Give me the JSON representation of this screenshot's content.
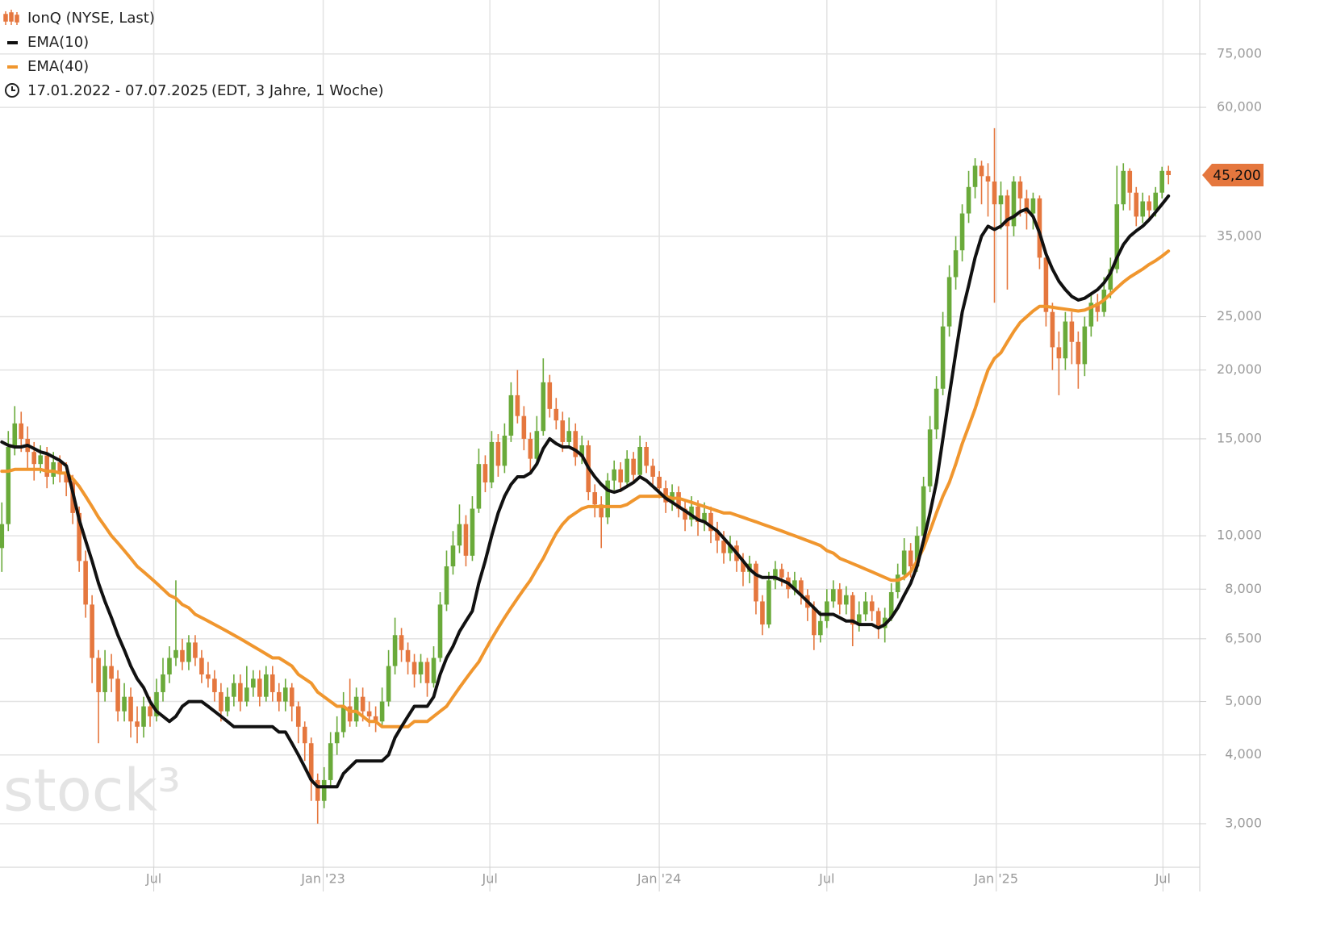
{
  "chart_data": {
    "type": "candlestick",
    "title": "IonQ (NYSE, Last)",
    "subtitle": "17.01.2022 - 07.07.2025",
    "subtitle_note": "(EDT, 3 Jahre, 1 Woche)",
    "watermark": "stock³",
    "log_scale": true,
    "grid": true,
    "up_color": "#6aaa3a",
    "down_color": "#e5773e",
    "title_color": "#e5773e",
    "xlim": [
      "2022-01-15",
      "2025-08-10"
    ],
    "xticks": [
      {
        "value": "2022-07-01",
        "label": "Jul"
      },
      {
        "value": "2023-01-01",
        "label": "Jan '23"
      },
      {
        "value": "2023-07-01",
        "label": "Jul"
      },
      {
        "value": "2024-01-01",
        "label": "Jan '24"
      },
      {
        "value": "2024-07-01",
        "label": "Jul"
      },
      {
        "value": "2025-01-01",
        "label": "Jan '25"
      },
      {
        "value": "2025-07-01",
        "label": "Jul"
      }
    ],
    "ylim": [
      2.5,
      94
    ],
    "yticks": [
      {
        "value": 3,
        "label": "3,000"
      },
      {
        "value": 4,
        "label": "4,000"
      },
      {
        "value": 5,
        "label": "5,000"
      },
      {
        "value": 6.5,
        "label": "6,500"
      },
      {
        "value": 8,
        "label": "8,000"
      },
      {
        "value": 10,
        "label": "10,000"
      },
      {
        "value": 15,
        "label": "15,000"
      },
      {
        "value": 20,
        "label": "20,000"
      },
      {
        "value": 25,
        "label": "25,000"
      },
      {
        "value": 35,
        "label": "35,000"
      },
      {
        "value": 60,
        "label": "60,000"
      },
      {
        "value": 75,
        "label": "75,000"
      }
    ],
    "last_price": {
      "value": 45.2,
      "label": "45,200"
    },
    "x": [
      "2022-01-17",
      "2022-01-24",
      "2022-01-31",
      "2022-02-07",
      "2022-02-14",
      "2022-02-21",
      "2022-02-28",
      "2022-03-07",
      "2022-03-14",
      "2022-03-21",
      "2022-03-28",
      "2022-04-04",
      "2022-04-11",
      "2022-04-18",
      "2022-04-25",
      "2022-05-02",
      "2022-05-09",
      "2022-05-16",
      "2022-05-23",
      "2022-05-30",
      "2022-06-06",
      "2022-06-13",
      "2022-06-20",
      "2022-06-27",
      "2022-07-04",
      "2022-07-11",
      "2022-07-18",
      "2022-07-25",
      "2022-08-01",
      "2022-08-08",
      "2022-08-15",
      "2022-08-22",
      "2022-08-29",
      "2022-09-05",
      "2022-09-12",
      "2022-09-19",
      "2022-09-26",
      "2022-10-03",
      "2022-10-10",
      "2022-10-17",
      "2022-10-24",
      "2022-10-31",
      "2022-11-07",
      "2022-11-14",
      "2022-11-21",
      "2022-11-28",
      "2022-12-05",
      "2022-12-12",
      "2022-12-19",
      "2022-12-26",
      "2023-01-02",
      "2023-01-09",
      "2023-01-16",
      "2023-01-23",
      "2023-01-30",
      "2023-02-06",
      "2023-02-13",
      "2023-02-20",
      "2023-02-27",
      "2023-03-06",
      "2023-03-13",
      "2023-03-20",
      "2023-03-27",
      "2023-04-03",
      "2023-04-10",
      "2023-04-17",
      "2023-04-24",
      "2023-05-01",
      "2023-05-08",
      "2023-05-15",
      "2023-05-22",
      "2023-05-29",
      "2023-06-05",
      "2023-06-12",
      "2023-06-19",
      "2023-06-26",
      "2023-07-03",
      "2023-07-10",
      "2023-07-17",
      "2023-07-24",
      "2023-07-31",
      "2023-08-07",
      "2023-08-14",
      "2023-08-21",
      "2023-08-28",
      "2023-09-04",
      "2023-09-11",
      "2023-09-18",
      "2023-09-25",
      "2023-10-02",
      "2023-10-09",
      "2023-10-16",
      "2023-10-23",
      "2023-10-30",
      "2023-11-06",
      "2023-11-13",
      "2023-11-20",
      "2023-11-27",
      "2023-12-04",
      "2023-12-11",
      "2023-12-18",
      "2023-12-25",
      "2024-01-01",
      "2024-01-08",
      "2024-01-15",
      "2024-01-22",
      "2024-01-29",
      "2024-02-05",
      "2024-02-12",
      "2024-02-19",
      "2024-02-26",
      "2024-03-04",
      "2024-03-11",
      "2024-03-18",
      "2024-03-25",
      "2024-04-01",
      "2024-04-08",
      "2024-04-15",
      "2024-04-22",
      "2024-04-29",
      "2024-05-06",
      "2024-05-13",
      "2024-05-20",
      "2024-05-27",
      "2024-06-03",
      "2024-06-10",
      "2024-06-17",
      "2024-06-24",
      "2024-07-01",
      "2024-07-08",
      "2024-07-15",
      "2024-07-22",
      "2024-07-29",
      "2024-08-05",
      "2024-08-12",
      "2024-08-19",
      "2024-08-26",
      "2024-09-02",
      "2024-09-09",
      "2024-09-16",
      "2024-09-23",
      "2024-09-30",
      "2024-10-07",
      "2024-10-14",
      "2024-10-21",
      "2024-10-28",
      "2024-11-04",
      "2024-11-11",
      "2024-11-18",
      "2024-11-25",
      "2024-12-02",
      "2024-12-09",
      "2024-12-16",
      "2024-12-23",
      "2024-12-30",
      "2025-01-06",
      "2025-01-13",
      "2025-01-20",
      "2025-01-27",
      "2025-02-03",
      "2025-02-10",
      "2025-02-17",
      "2025-02-24",
      "2025-03-03",
      "2025-03-10",
      "2025-03-17",
      "2025-03-24",
      "2025-03-31",
      "2025-04-07",
      "2025-04-14",
      "2025-04-21",
      "2025-04-28",
      "2025-05-05",
      "2025-05-12",
      "2025-05-19",
      "2025-05-26",
      "2025-06-02",
      "2025-06-09",
      "2025-06-16",
      "2025-06-23",
      "2025-06-30",
      "2025-07-07"
    ],
    "open": [
      9.5,
      10.5,
      14.5,
      16.0,
      15.0,
      14.2,
      13.5,
      14.0,
      12.8,
      13.6,
      13.0,
      12.5,
      11.0,
      9.0,
      7.5,
      6.0,
      5.2,
      5.8,
      5.5,
      4.8,
      5.1,
      4.6,
      4.5,
      4.9,
      4.7,
      5.2,
      5.6,
      6.0,
      6.2,
      5.9,
      6.4,
      6.0,
      5.6,
      5.5,
      5.2,
      4.8,
      5.1,
      5.4,
      5.0,
      5.3,
      5.5,
      5.1,
      5.6,
      5.2,
      5.0,
      5.3,
      4.9,
      4.5,
      4.2,
      3.6,
      3.3,
      3.6,
      4.2,
      4.4,
      4.9,
      4.6,
      5.1,
      4.8,
      4.7,
      4.6,
      5.0,
      5.8,
      6.6,
      6.2,
      5.9,
      5.6,
      5.9,
      5.4,
      6.0,
      7.5,
      8.8,
      9.6,
      10.5,
      9.2,
      11.2,
      13.5,
      12.5,
      14.8,
      13.4,
      15.2,
      18.0,
      16.5,
      15.0,
      13.8,
      15.5,
      19.0,
      17.0,
      16.2,
      14.8,
      15.5,
      13.9,
      14.6,
      12.0,
      11.4,
      10.8,
      12.6,
      13.2,
      12.5,
      13.8,
      12.9,
      14.5,
      13.4,
      12.8,
      12.2,
      11.5,
      12.0,
      11.2,
      10.7,
      11.3,
      10.6,
      11.0,
      10.2,
      9.8,
      9.3,
      9.6,
      9.0,
      8.6,
      8.9,
      7.6,
      6.9,
      8.3,
      8.7,
      8.4,
      8.0,
      8.3,
      7.8,
      7.4,
      6.6,
      7.0,
      7.6,
      8.0,
      7.5,
      7.8,
      6.9,
      7.2,
      7.6,
      7.3,
      6.8,
      7.1,
      7.9,
      8.5,
      9.4,
      8.8,
      10.0,
      12.3,
      15.6,
      18.5,
      24.0,
      29.5,
      33.0,
      38.5,
      43.0,
      47.0,
      45.0,
      44.0,
      40.0,
      41.5,
      36.5,
      44.0,
      41.0,
      38.5,
      41.0,
      32.0,
      25.5,
      22.0,
      21.0,
      24.5,
      22.5,
      20.5,
      24.0,
      26.5,
      25.5,
      28.0,
      30.5,
      40.0,
      46.0,
      42.0,
      38.0,
      40.5,
      39.0,
      42.0,
      46.0
    ],
    "high": [
      11.5,
      15.5,
      17.2,
      16.8,
      15.8,
      14.8,
      14.6,
      14.5,
      14.2,
      14.0,
      13.6,
      12.9,
      11.3,
      9.4,
      7.8,
      6.2,
      6.2,
      6.1,
      5.7,
      5.4,
      5.3,
      4.9,
      5.1,
      5.1,
      5.5,
      6.0,
      6.3,
      8.3,
      6.5,
      6.6,
      6.6,
      6.2,
      5.9,
      5.7,
      5.4,
      5.3,
      5.6,
      5.6,
      5.8,
      5.7,
      5.7,
      5.8,
      5.8,
      5.4,
      5.5,
      5.4,
      5.0,
      4.6,
      4.3,
      3.7,
      3.8,
      4.4,
      4.7,
      5.2,
      5.5,
      5.3,
      5.3,
      5.0,
      4.9,
      5.3,
      6.2,
      7.1,
      6.8,
      6.4,
      6.1,
      6.1,
      6.0,
      6.3,
      7.9,
      9.4,
      10.2,
      11.4,
      10.9,
      11.8,
      14.4,
      14.0,
      15.5,
      15.3,
      16.0,
      19.0,
      20.0,
      17.2,
      15.4,
      16.5,
      21.0,
      19.6,
      17.8,
      16.8,
      16.4,
      16.0,
      15.2,
      14.9,
      12.4,
      11.8,
      13.0,
      13.7,
      13.6,
      14.3,
      14.2,
      15.2,
      14.8,
      13.8,
      13.1,
      12.6,
      12.4,
      12.3,
      11.6,
      11.8,
      11.6,
      11.5,
      11.3,
      10.6,
      10.2,
      10.0,
      9.8,
      9.3,
      9.2,
      9.0,
      7.8,
      8.6,
      9.0,
      8.9,
      8.6,
      8.6,
      8.4,
      8.0,
      7.6,
      7.3,
      8.0,
      8.3,
      8.2,
      8.1,
      7.9,
      7.6,
      7.9,
      7.8,
      7.4,
      7.4,
      8.2,
      8.9,
      9.9,
      9.7,
      10.4,
      12.8,
      16.5,
      19.5,
      25.5,
      31.0,
      35.0,
      40.0,
      46.0,
      48.5,
      48.0,
      47.5,
      55.0,
      44.0,
      42.5,
      45.0,
      45.0,
      42.5,
      42.0,
      41.5,
      33.0,
      26.5,
      23.5,
      25.5,
      25.5,
      23.5,
      25.0,
      27.5,
      27.5,
      29.5,
      32.0,
      47.0,
      47.5,
      46.5,
      43.0,
      42.0,
      41.5,
      43.0,
      46.8,
      47.0
    ],
    "low": [
      8.6,
      10.2,
      14.0,
      14.2,
      13.2,
      12.6,
      13.0,
      12.2,
      12.4,
      12.5,
      11.8,
      10.5,
      8.6,
      7.1,
      5.4,
      4.2,
      5.0,
      5.2,
      4.6,
      4.6,
      4.3,
      4.2,
      4.3,
      4.5,
      4.6,
      5.0,
      5.4,
      5.8,
      5.7,
      5.7,
      5.8,
      5.4,
      5.3,
      5.0,
      4.6,
      4.7,
      4.9,
      4.8,
      4.9,
      5.1,
      4.9,
      5.0,
      5.0,
      4.8,
      4.8,
      4.6,
      4.2,
      3.9,
      3.3,
      3.0,
      3.2,
      3.5,
      4.0,
      4.3,
      4.5,
      4.5,
      4.6,
      4.5,
      4.4,
      4.5,
      4.9,
      5.6,
      5.9,
      5.6,
      5.3,
      5.4,
      5.1,
      5.3,
      5.9,
      7.3,
      8.5,
      9.3,
      8.8,
      9.0,
      11.0,
      12.0,
      12.2,
      12.8,
      13.0,
      14.8,
      16.0,
      14.3,
      13.0,
      13.5,
      15.2,
      16.4,
      15.6,
      14.2,
      14.4,
      13.4,
      13.5,
      11.6,
      10.8,
      9.5,
      10.5,
      12.1,
      12.0,
      12.2,
      12.5,
      12.7,
      13.0,
      12.3,
      11.7,
      11.0,
      11.1,
      10.8,
      10.2,
      10.4,
      10.0,
      10.2,
      9.7,
      9.3,
      8.9,
      9.0,
      8.6,
      8.1,
      8.2,
      7.2,
      6.6,
      6.8,
      8.0,
      8.1,
      7.7,
      7.8,
      7.5,
      7.0,
      6.2,
      6.4,
      6.8,
      7.4,
      7.2,
      7.2,
      6.3,
      6.7,
      7.0,
      7.0,
      6.5,
      6.4,
      7.0,
      7.7,
      8.3,
      8.4,
      8.6,
      9.8,
      12.0,
      15.0,
      18.0,
      23.0,
      28.0,
      31.5,
      37.0,
      41.0,
      40.0,
      38.0,
      26.5,
      36.0,
      28.0,
      35.0,
      38.0,
      36.0,
      36.0,
      30.5,
      24.0,
      20.0,
      18.0,
      20.0,
      20.5,
      18.5,
      19.5,
      23.0,
      24.5,
      25.0,
      27.0,
      30.0,
      39.0,
      39.0,
      36.5,
      37.0,
      37.5,
      38.0,
      41.0,
      43.5
    ],
    "close": [
      10.5,
      14.5,
      16.0,
      15.0,
      14.2,
      13.5,
      14.0,
      12.8,
      13.6,
      13.0,
      12.5,
      11.0,
      9.0,
      7.5,
      6.0,
      5.2,
      5.8,
      5.5,
      4.8,
      5.1,
      4.6,
      4.5,
      4.9,
      4.7,
      5.2,
      5.6,
      6.0,
      6.2,
      5.9,
      6.4,
      6.0,
      5.6,
      5.5,
      5.2,
      4.8,
      5.1,
      5.4,
      5.0,
      5.3,
      5.5,
      5.1,
      5.6,
      5.2,
      5.0,
      5.3,
      4.9,
      4.5,
      4.2,
      3.6,
      3.3,
      3.6,
      4.2,
      4.4,
      4.9,
      4.6,
      5.1,
      4.8,
      4.7,
      4.6,
      5.0,
      5.8,
      6.6,
      6.2,
      5.9,
      5.6,
      5.9,
      5.4,
      6.0,
      7.5,
      8.8,
      9.6,
      10.5,
      9.2,
      11.2,
      13.5,
      12.5,
      14.8,
      13.4,
      15.2,
      18.0,
      16.5,
      15.0,
      13.8,
      15.5,
      19.0,
      17.0,
      16.2,
      14.8,
      15.5,
      13.9,
      14.6,
      12.0,
      11.4,
      10.8,
      12.6,
      13.2,
      12.5,
      13.8,
      12.9,
      14.5,
      13.4,
      12.8,
      12.2,
      11.5,
      12.0,
      11.2,
      10.7,
      11.3,
      10.6,
      11.0,
      10.2,
      9.8,
      9.3,
      9.6,
      9.0,
      8.6,
      8.9,
      7.6,
      6.9,
      8.3,
      8.7,
      8.4,
      8.0,
      8.3,
      7.8,
      7.4,
      6.6,
      7.0,
      7.6,
      8.0,
      7.5,
      7.8,
      6.9,
      7.2,
      7.6,
      7.3,
      6.8,
      7.1,
      7.9,
      8.5,
      9.4,
      8.8,
      10.0,
      12.3,
      15.6,
      18.5,
      24.0,
      29.5,
      33.0,
      38.5,
      43.0,
      47.0,
      45.0,
      44.0,
      40.0,
      41.5,
      36.5,
      44.0,
      41.0,
      38.5,
      41.0,
      32.0,
      25.5,
      22.0,
      21.0,
      24.5,
      22.5,
      20.5,
      24.0,
      26.5,
      25.5,
      28.0,
      30.5,
      40.0,
      46.0,
      42.0,
      38.0,
      40.5,
      39.0,
      42.0,
      46.0,
      45.2
    ],
    "series": [
      {
        "name": "EMA(10)",
        "color": "#111111",
        "values": [
          14.8,
          14.6,
          14.5,
          14.5,
          14.6,
          14.4,
          14.2,
          14.1,
          13.9,
          13.7,
          13.4,
          12.0,
          10.7,
          9.8,
          9.0,
          8.2,
          7.6,
          7.1,
          6.6,
          6.2,
          5.8,
          5.5,
          5.3,
          5.0,
          4.8,
          4.7,
          4.6,
          4.7,
          4.9,
          5.0,
          5.0,
          5.0,
          4.9,
          4.8,
          4.7,
          4.6,
          4.5,
          4.5,
          4.5,
          4.5,
          4.5,
          4.5,
          4.5,
          4.4,
          4.4,
          4.2,
          4.0,
          3.8,
          3.6,
          3.5,
          3.5,
          3.5,
          3.5,
          3.7,
          3.8,
          3.9,
          3.9,
          3.9,
          3.9,
          3.9,
          4.0,
          4.3,
          4.5,
          4.7,
          4.9,
          4.9,
          4.9,
          5.1,
          5.6,
          6.0,
          6.3,
          6.7,
          7.0,
          7.3,
          8.2,
          9.0,
          10.0,
          11.0,
          11.8,
          12.4,
          12.8,
          12.8,
          13.0,
          13.5,
          14.4,
          15.0,
          14.7,
          14.5,
          14.5,
          14.3,
          14.0,
          13.3,
          12.8,
          12.4,
          12.1,
          12.0,
          12.1,
          12.3,
          12.5,
          12.8,
          12.6,
          12.3,
          12.0,
          11.7,
          11.5,
          11.3,
          11.1,
          10.9,
          10.7,
          10.6,
          10.4,
          10.2,
          9.9,
          9.6,
          9.3,
          9.0,
          8.7,
          8.5,
          8.4,
          8.4,
          8.4,
          8.3,
          8.2,
          8.0,
          7.8,
          7.6,
          7.4,
          7.2,
          7.2,
          7.2,
          7.1,
          7.0,
          7.0,
          6.9,
          6.9,
          6.9,
          6.8,
          6.9,
          7.1,
          7.4,
          7.8,
          8.2,
          8.8,
          9.8,
          11.0,
          12.5,
          15.0,
          18.0,
          21.5,
          25.5,
          28.5,
          32.0,
          35.0,
          36.5,
          36.0,
          36.5,
          37.5,
          38.0,
          38.8,
          39.2,
          38.0,
          35.5,
          32.5,
          30.5,
          29.0,
          28.0,
          27.2,
          26.8,
          27.0,
          27.5,
          28.0,
          28.8,
          30.0,
          32.0,
          33.8,
          35.0,
          35.8,
          36.5,
          37.5,
          38.7,
          40.0,
          41.4
        ]
      },
      {
        "name": "EMA(40)",
        "color": "#f0962e",
        "values": [
          13.1,
          13.1,
          13.2,
          13.2,
          13.2,
          13.2,
          13.2,
          13.1,
          13.1,
          13.0,
          13.0,
          12.7,
          12.3,
          11.8,
          11.3,
          10.8,
          10.4,
          10.0,
          9.7,
          9.4,
          9.1,
          8.8,
          8.6,
          8.4,
          8.2,
          8.0,
          7.8,
          7.7,
          7.5,
          7.4,
          7.2,
          7.1,
          7.0,
          6.9,
          6.8,
          6.7,
          6.6,
          6.5,
          6.4,
          6.3,
          6.2,
          6.1,
          6.0,
          6.0,
          5.9,
          5.8,
          5.6,
          5.5,
          5.4,
          5.2,
          5.1,
          5.0,
          4.9,
          4.9,
          4.8,
          4.8,
          4.7,
          4.6,
          4.6,
          4.5,
          4.5,
          4.5,
          4.5,
          4.5,
          4.6,
          4.6,
          4.6,
          4.7,
          4.8,
          4.9,
          5.1,
          5.3,
          5.5,
          5.7,
          5.9,
          6.2,
          6.5,
          6.8,
          7.1,
          7.4,
          7.7,
          8.0,
          8.3,
          8.7,
          9.1,
          9.6,
          10.1,
          10.5,
          10.8,
          11.0,
          11.2,
          11.3,
          11.3,
          11.3,
          11.3,
          11.3,
          11.3,
          11.4,
          11.6,
          11.8,
          11.8,
          11.8,
          11.8,
          11.8,
          11.7,
          11.7,
          11.6,
          11.5,
          11.4,
          11.3,
          11.2,
          11.1,
          11.0,
          11.0,
          10.9,
          10.8,
          10.7,
          10.6,
          10.5,
          10.4,
          10.3,
          10.2,
          10.1,
          10.0,
          9.9,
          9.8,
          9.7,
          9.6,
          9.4,
          9.3,
          9.1,
          9.0,
          8.9,
          8.8,
          8.7,
          8.6,
          8.5,
          8.4,
          8.3,
          8.3,
          8.4,
          8.6,
          9.0,
          9.5,
          10.2,
          11.0,
          11.8,
          12.5,
          13.5,
          14.7,
          15.8,
          17.0,
          18.5,
          20.0,
          21.0,
          21.5,
          22.5,
          23.5,
          24.4,
          25.0,
          25.6,
          26.1,
          26.1,
          26.0,
          25.9,
          25.8,
          25.7,
          25.6,
          25.7,
          26.0,
          26.3,
          26.8,
          27.5,
          28.2,
          28.9,
          29.5,
          30.0,
          30.5,
          31.1,
          31.6,
          32.2,
          32.9
        ]
      }
    ]
  }
}
